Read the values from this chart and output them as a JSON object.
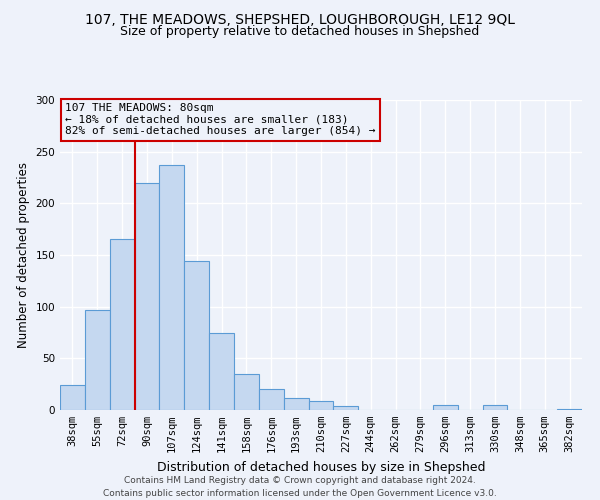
{
  "title": "107, THE MEADOWS, SHEPSHED, LOUGHBOROUGH, LE12 9QL",
  "subtitle": "Size of property relative to detached houses in Shepshed",
  "xlabel": "Distribution of detached houses by size in Shepshed",
  "ylabel": "Number of detached properties",
  "bin_labels": [
    "38sqm",
    "55sqm",
    "72sqm",
    "90sqm",
    "107sqm",
    "124sqm",
    "141sqm",
    "158sqm",
    "176sqm",
    "193sqm",
    "210sqm",
    "227sqm",
    "244sqm",
    "262sqm",
    "279sqm",
    "296sqm",
    "313sqm",
    "330sqm",
    "348sqm",
    "365sqm",
    "382sqm"
  ],
  "bin_values": [
    24,
    97,
    165,
    220,
    237,
    144,
    75,
    35,
    20,
    12,
    9,
    4,
    0,
    0,
    0,
    5,
    0,
    5,
    0,
    0,
    1
  ],
  "bar_color": "#c5d8f0",
  "bar_edge_color": "#5b9bd5",
  "property_line_color": "#cc0000",
  "annotation_box_text": "107 THE MEADOWS: 80sqm\n← 18% of detached houses are smaller (183)\n82% of semi-detached houses are larger (854) →",
  "annotation_box_color": "#cc0000",
  "ylim": [
    0,
    300
  ],
  "yticks": [
    0,
    50,
    100,
    150,
    200,
    250,
    300
  ],
  "footer_line1": "Contains HM Land Registry data © Crown copyright and database right 2024.",
  "footer_line2": "Contains public sector information licensed under the Open Government Licence v3.0.",
  "title_fontsize": 10,
  "subtitle_fontsize": 9,
  "xlabel_fontsize": 9,
  "ylabel_fontsize": 8.5,
  "tick_fontsize": 7.5,
  "footer_fontsize": 6.5,
  "annotation_fontsize": 8,
  "bg_color": "#eef2fa"
}
